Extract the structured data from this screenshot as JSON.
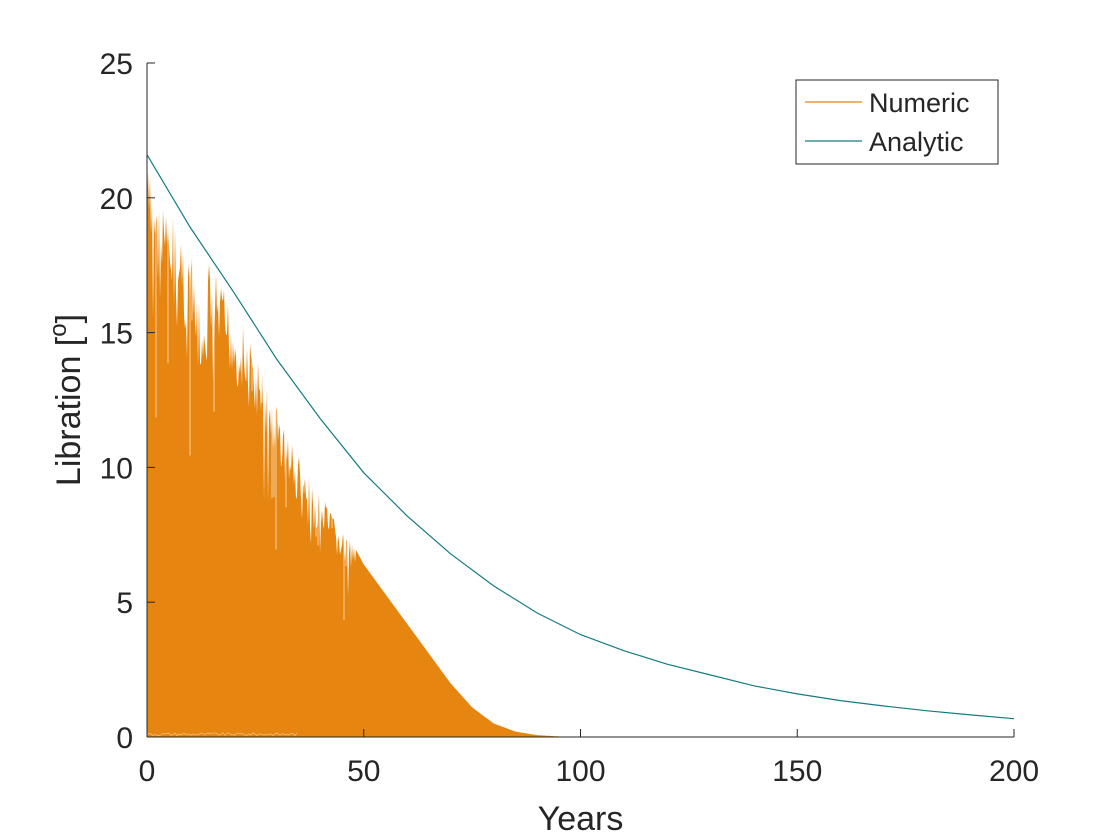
{
  "chart_data": {
    "type": "line",
    "title": "",
    "xlabel": "Years",
    "ylabel": "Libration [",
    "ylabel_super": "o",
    "ylabel_suffix": "]",
    "xlim": [
      0,
      200
    ],
    "ylim": [
      0,
      25
    ],
    "xticks": [
      0,
      50,
      100,
      150,
      200
    ],
    "yticks": [
      0,
      5,
      10,
      15,
      20,
      25
    ],
    "grid": false,
    "legend_position": "top-right",
    "series": [
      {
        "name": "Numeric",
        "color": "#E6850F",
        "style": "filled-oscillation",
        "envelope_x": [
          0,
          1,
          2,
          3,
          4,
          5,
          6,
          7,
          8,
          9,
          10,
          11,
          12,
          13,
          14,
          15,
          16,
          18,
          20,
          22,
          24,
          26,
          28,
          30,
          32,
          34,
          36,
          38,
          40,
          42,
          44,
          46,
          48,
          50,
          55,
          60,
          65,
          70,
          75,
          80,
          85,
          90,
          95,
          100,
          105,
          110,
          200
        ],
        "envelope_y": [
          21.6,
          20.8,
          21.3,
          19.6,
          20.4,
          19.0,
          19.8,
          18.2,
          19.4,
          17.8,
          18.5,
          16.8,
          16.2,
          15.0,
          17.8,
          17.6,
          17.2,
          16.6,
          16.1,
          15.4,
          14.6,
          14.0,
          13.1,
          12.4,
          11.5,
          10.8,
          10.2,
          9.4,
          9.0,
          8.5,
          8.0,
          7.5,
          7.0,
          6.4,
          5.3,
          4.2,
          3.1,
          2.0,
          1.1,
          0.5,
          0.2,
          0.07,
          0.02,
          0.0,
          0.0,
          0.0,
          0.0
        ]
      },
      {
        "name": "Analytic",
        "color": "#137C80",
        "style": "line",
        "x": [
          0,
          10,
          20,
          30,
          40,
          50,
          60,
          70,
          80,
          90,
          100,
          110,
          120,
          130,
          140,
          150,
          160,
          170,
          180,
          190,
          200
        ],
        "y": [
          21.6,
          18.9,
          16.5,
          14.0,
          11.8,
          9.8,
          8.2,
          6.8,
          5.6,
          4.6,
          3.8,
          3.2,
          2.7,
          2.3,
          1.9,
          1.6,
          1.35,
          1.15,
          0.97,
          0.82,
          0.68
        ]
      }
    ]
  }
}
